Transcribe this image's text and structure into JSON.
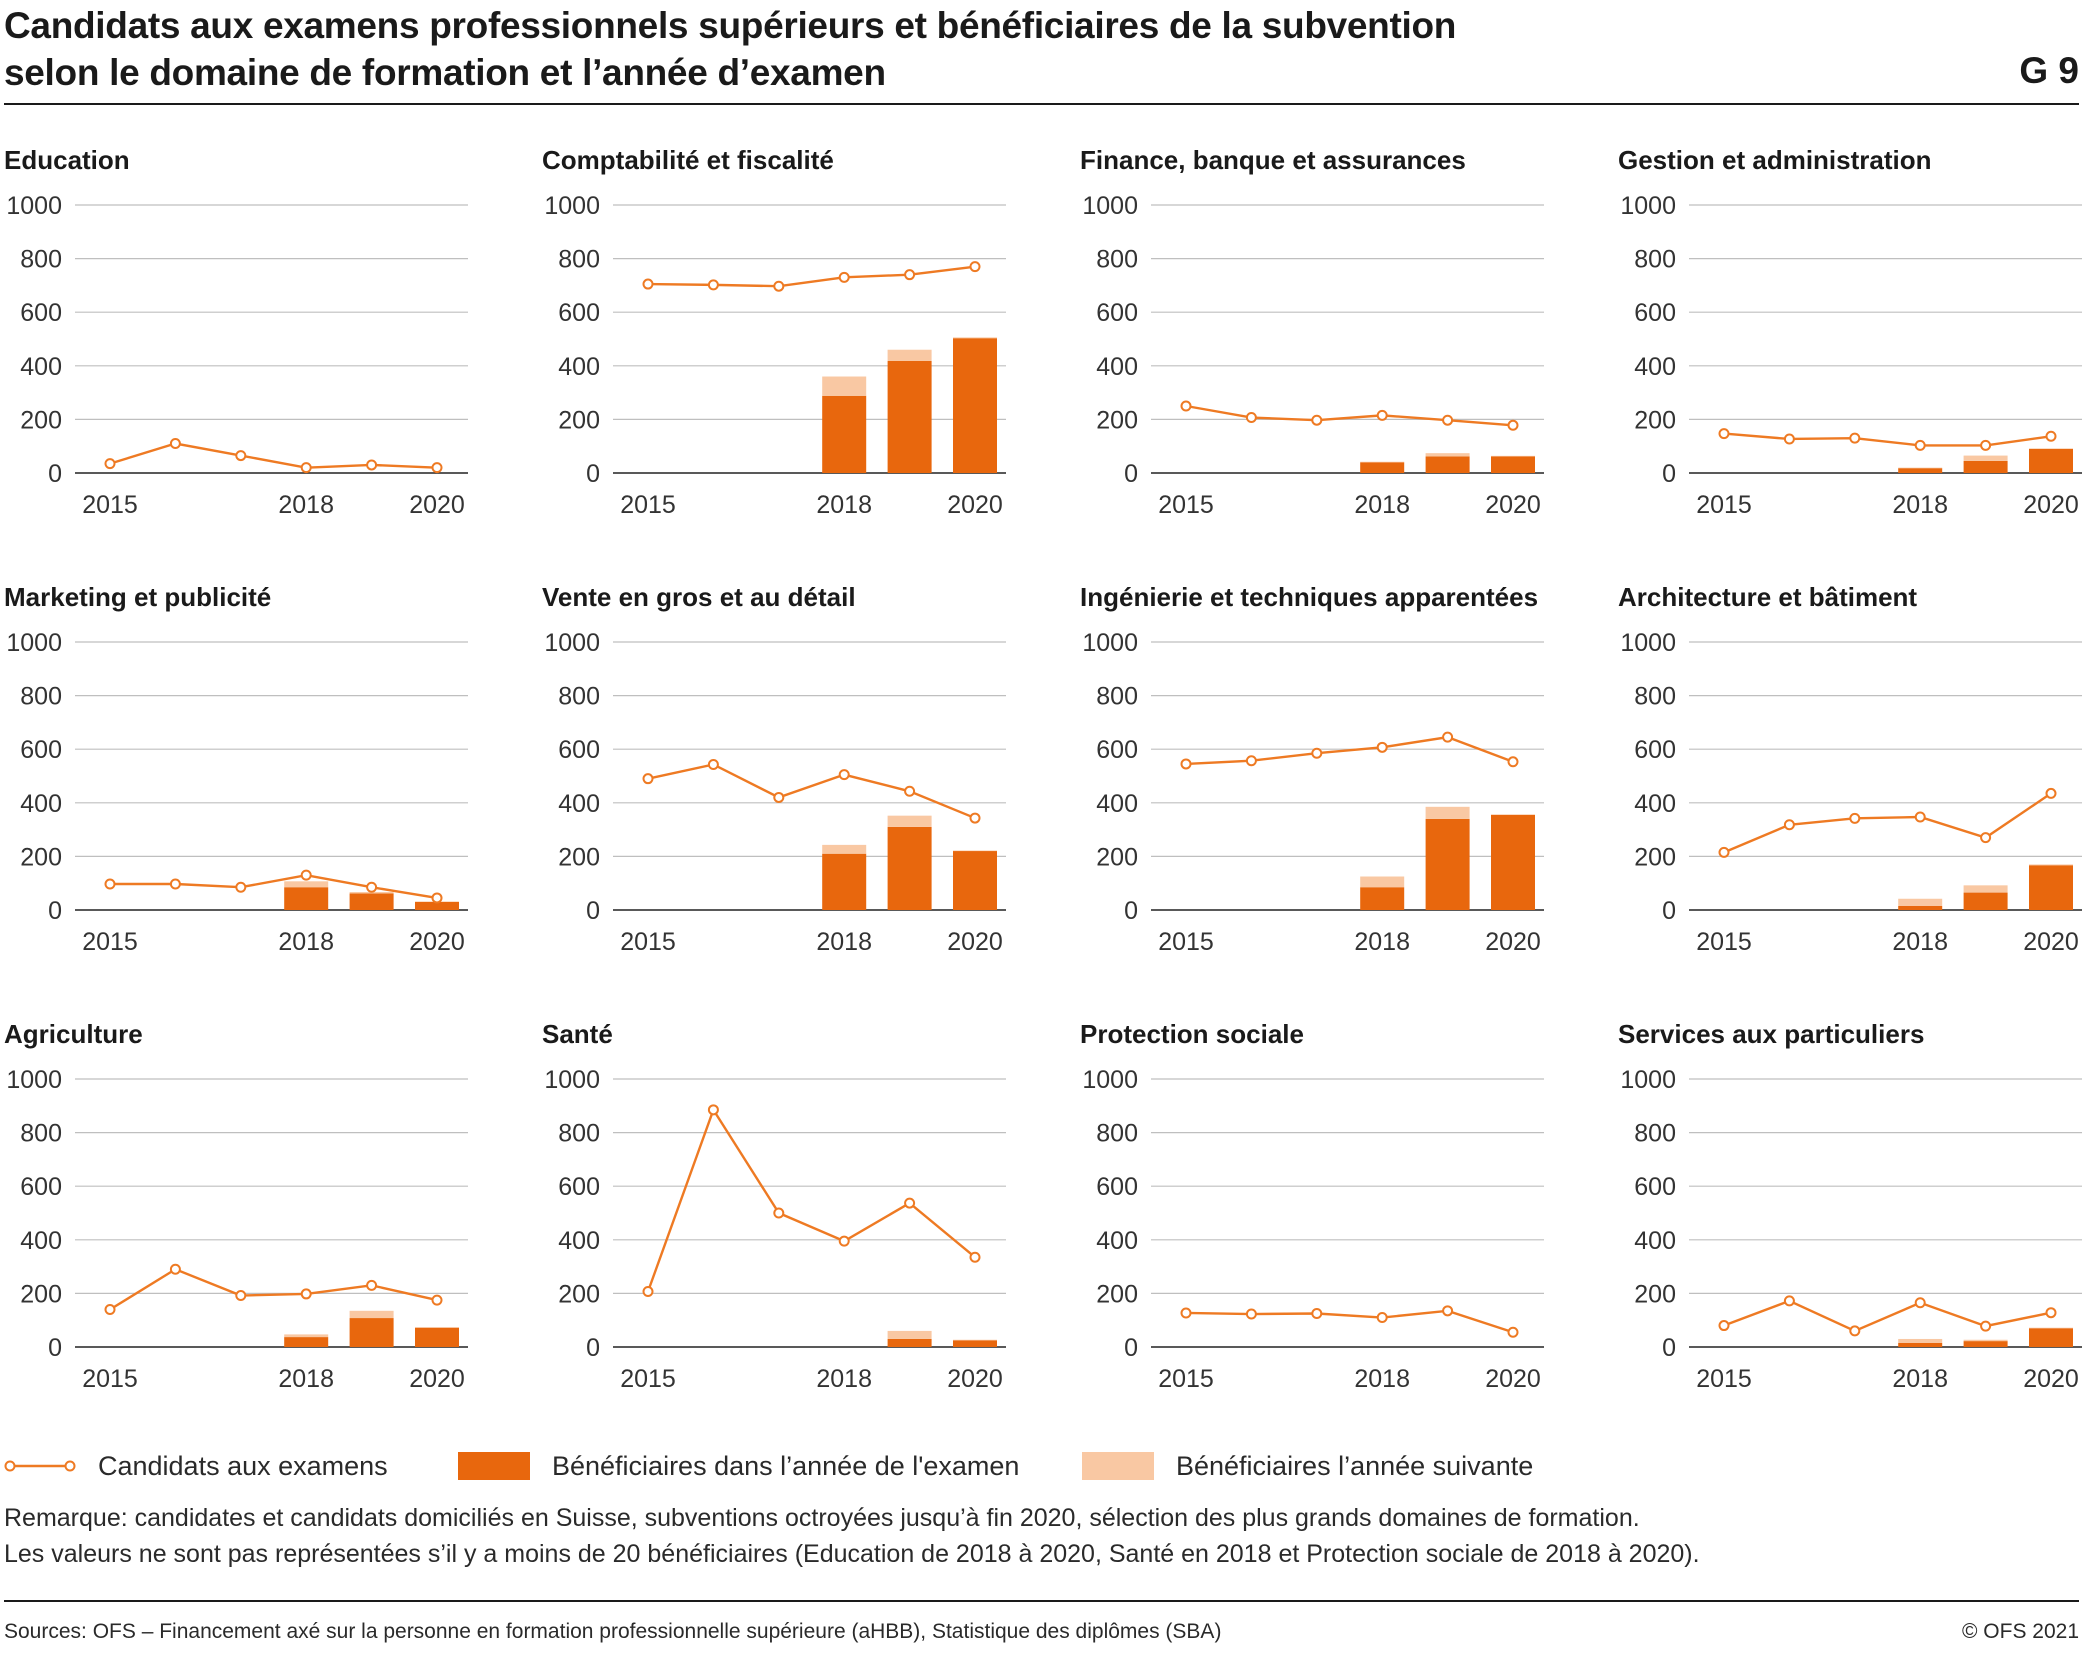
{
  "header": {
    "title_line1": "Candidats aux examens professionnels supérieurs et bénéficiaires de la subvention",
    "title_line2": "selon le domaine de formation et l’année d’examen",
    "figure_code": "G 9"
  },
  "colors": {
    "line": "#ee7a23",
    "bar_exam_year": "#e8670d",
    "bar_next_year": "#f9c8a3",
    "grid": "#bfbfbf",
    "axis": "#222222"
  },
  "chart_data": [
    {
      "type": "bar+line",
      "title": "Education",
      "x": [
        2015,
        2016,
        2017,
        2018,
        2019,
        2020
      ],
      "xticks": [
        "2015",
        "2018",
        "2020"
      ],
      "yticks": [
        "0",
        "200",
        "400",
        "600",
        "800",
        "1000"
      ],
      "ylim": [
        0,
        1000
      ],
      "series": [
        {
          "name": "Candidats aux examens",
          "kind": "line",
          "values": [
            35,
            110,
            65,
            20,
            30,
            20
          ]
        },
        {
          "name": "Bénéficiaires dans l’année de l'examen",
          "kind": "bar",
          "values": [
            null,
            null,
            null,
            null,
            null,
            null
          ]
        },
        {
          "name": "Bénéficiaires l’année suivante",
          "kind": "bar-stacked",
          "values": [
            null,
            null,
            null,
            null,
            null,
            null
          ]
        }
      ]
    },
    {
      "type": "bar+line",
      "title": "Comptabilité et fiscalité",
      "x": [
        2015,
        2016,
        2017,
        2018,
        2019,
        2020
      ],
      "xticks": [
        "2015",
        "2018",
        "2020"
      ],
      "yticks": [
        "0",
        "200",
        "400",
        "600",
        "800",
        "1000"
      ],
      "ylim": [
        0,
        1000
      ],
      "series": [
        {
          "name": "Candidats aux examens",
          "kind": "line",
          "values": [
            705,
            702,
            697,
            730,
            740,
            770
          ]
        },
        {
          "name": "Bénéficiaires dans l’année de l'examen",
          "kind": "bar",
          "values": [
            null,
            null,
            null,
            288,
            418,
            503
          ]
        },
        {
          "name": "Bénéficiaires l’année suivante",
          "kind": "bar-stacked",
          "values": [
            null,
            null,
            null,
            72,
            42,
            3
          ]
        }
      ]
    },
    {
      "type": "bar+line",
      "title": "Finance, banque et assurances",
      "x": [
        2015,
        2016,
        2017,
        2018,
        2019,
        2020
      ],
      "xticks": [
        "2015",
        "2018",
        "2020"
      ],
      "yticks": [
        "0",
        "200",
        "400",
        "600",
        "800",
        "1000"
      ],
      "ylim": [
        0,
        1000
      ],
      "series": [
        {
          "name": "Candidats aux examens",
          "kind": "line",
          "values": [
            250,
            207,
            197,
            215,
            197,
            178
          ]
        },
        {
          "name": "Bénéficiaires dans l’année de l'examen",
          "kind": "bar",
          "values": [
            null,
            null,
            null,
            40,
            62,
            62
          ]
        },
        {
          "name": "Bénéficiaires l’année suivante",
          "kind": "bar-stacked",
          "values": [
            null,
            null,
            null,
            2,
            12,
            2
          ]
        }
      ]
    },
    {
      "type": "bar+line",
      "title": "Gestion et administration",
      "x": [
        2015,
        2016,
        2017,
        2018,
        2019,
        2020
      ],
      "xticks": [
        "2015",
        "2018",
        "2020"
      ],
      "yticks": [
        "0",
        "200",
        "400",
        "600",
        "800",
        "1000"
      ],
      "ylim": [
        0,
        1000
      ],
      "series": [
        {
          "name": "Candidats aux examens",
          "kind": "line",
          "values": [
            147,
            127,
            130,
            103,
            103,
            137
          ]
        },
        {
          "name": "Bénéficiaires dans l’année de l'examen",
          "kind": "bar",
          "values": [
            null,
            null,
            null,
            18,
            45,
            90
          ]
        },
        {
          "name": "Bénéficiaires l’année suivante",
          "kind": "bar-stacked",
          "values": [
            null,
            null,
            null,
            2,
            20,
            2
          ]
        }
      ]
    },
    {
      "type": "bar+line",
      "title": "Marketing et publicité",
      "x": [
        2015,
        2016,
        2017,
        2018,
        2019,
        2020
      ],
      "xticks": [
        "2015",
        "2018",
        "2020"
      ],
      "yticks": [
        "0",
        "200",
        "400",
        "600",
        "800",
        "1000"
      ],
      "ylim": [
        0,
        1000
      ],
      "series": [
        {
          "name": "Candidats aux examens",
          "kind": "line",
          "values": [
            97,
            97,
            85,
            130,
            85,
            45
          ]
        },
        {
          "name": "Bénéficiaires dans l’année de l'examen",
          "kind": "bar",
          "values": [
            null,
            null,
            null,
            85,
            62,
            30
          ]
        },
        {
          "name": "Bénéficiaires l’année suivante",
          "kind": "bar-stacked",
          "values": [
            null,
            null,
            null,
            22,
            5,
            2
          ]
        }
      ]
    },
    {
      "type": "bar+line",
      "title": "Vente en gros et au détail",
      "x": [
        2015,
        2016,
        2017,
        2018,
        2019,
        2020
      ],
      "xticks": [
        "2015",
        "2018",
        "2020"
      ],
      "yticks": [
        "0",
        "200",
        "400",
        "600",
        "800",
        "1000"
      ],
      "ylim": [
        0,
        1000
      ],
      "series": [
        {
          "name": "Candidats aux examens",
          "kind": "line",
          "values": [
            490,
            543,
            420,
            505,
            443,
            343
          ]
        },
        {
          "name": "Bénéficiaires dans l’année de l'examen",
          "kind": "bar",
          "values": [
            null,
            null,
            null,
            210,
            310,
            220
          ]
        },
        {
          "name": "Bénéficiaires l’année suivante",
          "kind": "bar-stacked",
          "values": [
            null,
            null,
            null,
            33,
            42,
            2
          ]
        }
      ]
    },
    {
      "type": "bar+line",
      "title": "Ingénierie et techniques apparentées",
      "x": [
        2015,
        2016,
        2017,
        2018,
        2019,
        2020
      ],
      "xticks": [
        "2015",
        "2018",
        "2020"
      ],
      "yticks": [
        "0",
        "200",
        "400",
        "600",
        "800",
        "1000"
      ],
      "ylim": [
        0,
        1000
      ],
      "series": [
        {
          "name": "Candidats aux examens",
          "kind": "line",
          "values": [
            545,
            557,
            585,
            607,
            645,
            553
          ]
        },
        {
          "name": "Bénéficiaires dans l’année de l'examen",
          "kind": "bar",
          "values": [
            null,
            null,
            null,
            85,
            340,
            355
          ]
        },
        {
          "name": "Bénéficiaires l’année suivante",
          "kind": "bar-stacked",
          "values": [
            null,
            null,
            null,
            40,
            45,
            2
          ]
        }
      ]
    },
    {
      "type": "bar+line",
      "title": "Architecture et bâtiment",
      "x": [
        2015,
        2016,
        2017,
        2018,
        2019,
        2020
      ],
      "xticks": [
        "2015",
        "2018",
        "2020"
      ],
      "yticks": [
        "0",
        "200",
        "400",
        "600",
        "800",
        "1000"
      ],
      "ylim": [
        0,
        1000
      ],
      "series": [
        {
          "name": "Candidats aux examens",
          "kind": "line",
          "values": [
            215,
            318,
            342,
            347,
            270,
            435
          ]
        },
        {
          "name": "Bénéficiaires dans l’année de l'examen",
          "kind": "bar",
          "values": [
            null,
            null,
            null,
            15,
            65,
            167
          ]
        },
        {
          "name": "Bénéficiaires l’année suivante",
          "kind": "bar-stacked",
          "values": [
            null,
            null,
            null,
            27,
            27,
            3
          ]
        }
      ]
    },
    {
      "type": "bar+line",
      "title": "Agriculture",
      "x": [
        2015,
        2016,
        2017,
        2018,
        2019,
        2020
      ],
      "xticks": [
        "2015",
        "2018",
        "2020"
      ],
      "yticks": [
        "0",
        "200",
        "400",
        "600",
        "800",
        "1000"
      ],
      "ylim": [
        0,
        1000
      ],
      "series": [
        {
          "name": "Candidats aux examens",
          "kind": "line",
          "values": [
            140,
            290,
            192,
            198,
            230,
            175
          ]
        },
        {
          "name": "Bénéficiaires dans l’année de l'examen",
          "kind": "bar",
          "values": [
            null,
            null,
            null,
            37,
            108,
            72
          ]
        },
        {
          "name": "Bénéficiaires l’année suivante",
          "kind": "bar-stacked",
          "values": [
            null,
            null,
            null,
            10,
            27,
            2
          ]
        }
      ]
    },
    {
      "type": "bar+line",
      "title": "Santé",
      "x": [
        2015,
        2016,
        2017,
        2018,
        2019,
        2020
      ],
      "xticks": [
        "2015",
        "2018",
        "2020"
      ],
      "yticks": [
        "0",
        "200",
        "400",
        "600",
        "800",
        "1000"
      ],
      "ylim": [
        0,
        1000
      ],
      "series": [
        {
          "name": "Candidats aux examens",
          "kind": "line",
          "values": [
            207,
            885,
            500,
            395,
            537,
            335
          ]
        },
        {
          "name": "Bénéficiaires dans l’année de l'examen",
          "kind": "bar",
          "values": [
            null,
            null,
            null,
            null,
            30,
            25
          ]
        },
        {
          "name": "Bénéficiaires l’année suivante",
          "kind": "bar-stacked",
          "values": [
            null,
            null,
            null,
            null,
            30,
            2
          ]
        }
      ]
    },
    {
      "type": "bar+line",
      "title": "Protection sociale",
      "x": [
        2015,
        2016,
        2017,
        2018,
        2019,
        2020
      ],
      "xticks": [
        "2015",
        "2018",
        "2020"
      ],
      "yticks": [
        "0",
        "200",
        "400",
        "600",
        "800",
        "1000"
      ],
      "ylim": [
        0,
        1000
      ],
      "series": [
        {
          "name": "Candidats aux examens",
          "kind": "line",
          "values": [
            127,
            123,
            125,
            110,
            135,
            55
          ]
        },
        {
          "name": "Bénéficiaires dans l’année de l'examen",
          "kind": "bar",
          "values": [
            null,
            null,
            null,
            null,
            null,
            null
          ]
        },
        {
          "name": "Bénéficiaires l’année suivante",
          "kind": "bar-stacked",
          "values": [
            null,
            null,
            null,
            null,
            null,
            null
          ]
        }
      ]
    },
    {
      "type": "bar+line",
      "title": "Services aux particuliers",
      "x": [
        2015,
        2016,
        2017,
        2018,
        2019,
        2020
      ],
      "xticks": [
        "2015",
        "2018",
        "2020"
      ],
      "yticks": [
        "0",
        "200",
        "400",
        "600",
        "800",
        "1000"
      ],
      "ylim": [
        0,
        1000
      ],
      "series": [
        {
          "name": "Candidats aux examens",
          "kind": "line",
          "values": [
            80,
            172,
            60,
            165,
            78,
            128
          ]
        },
        {
          "name": "Bénéficiaires dans l’année de l'examen",
          "kind": "bar",
          "values": [
            null,
            null,
            null,
            15,
            22,
            70
          ]
        },
        {
          "name": "Bénéficiaires l’année suivante",
          "kind": "bar-stacked",
          "values": [
            null,
            null,
            null,
            15,
            5,
            2
          ]
        }
      ]
    }
  ],
  "legend": {
    "line": "Candidats aux examens",
    "bar_exam_year": "Bénéficiaires dans l’année de l'examen",
    "bar_next_year": "Bénéficiaires l’année suivante"
  },
  "notes": {
    "line1": "Remarque: candidates et candidats domiciliés en Suisse, subventions octroyées jusqu’à fin 2020, sélection des plus grands domaines de formation.",
    "line2": "Les valeurs ne sont pas représentées s’il y a moins de 20 bénéficiaires (Education de 2018 à 2020, Santé en 2018 et Protection sociale de 2018 à 2020)."
  },
  "footer": {
    "source": "Sources: OFS – Financement axé sur la personne en formation professionnelle supérieure (aHBB), Statistique des diplômes (SBA)",
    "copyright": "© OFS 2021"
  }
}
